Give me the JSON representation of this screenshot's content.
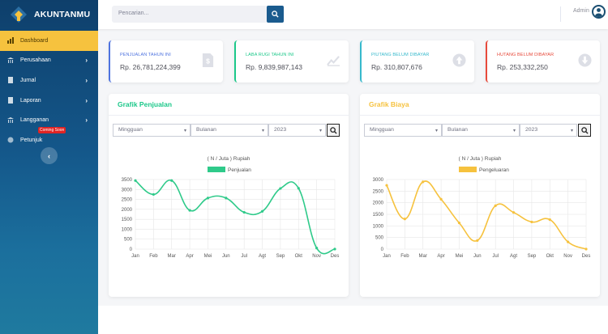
{
  "brand": {
    "name": "AKUNTANMU"
  },
  "sidebar": {
    "items": [
      {
        "label": "Dashboard",
        "icon": "chart-icon",
        "active": true,
        "chevron": ""
      },
      {
        "label": "Perusahaan",
        "icon": "bank-icon",
        "chevron": "›"
      },
      {
        "label": "Jurnal",
        "icon": "book-icon",
        "chevron": "›"
      },
      {
        "label": "Laporan",
        "icon": "report-icon",
        "chevron": "›"
      },
      {
        "label": "Langganan",
        "icon": "bank-icon",
        "chevron": "›"
      },
      {
        "label": "Petunjuk",
        "icon": "help-icon",
        "chevron": "",
        "badge": "Coming Soon"
      }
    ],
    "toggle": "‹"
  },
  "topbar": {
    "search_placeholder": "Pencarian...",
    "user": "Admin"
  },
  "stats": [
    {
      "label": "PENJUALAN TAHUN INI",
      "value": "Rp. 26,781,224,399",
      "color": "#4e73df",
      "icon": "invoice-icon"
    },
    {
      "label": "LABA RUGI TAHUN INI",
      "value": "Rp. 9,839,987,143",
      "color": "#1cc88a",
      "icon": "trend-up-icon"
    },
    {
      "label": "PIUTANG BELUM DIBAYAR",
      "value": "Rp. 310,807,676",
      "color": "#36b9cc",
      "icon": "arrow-up-circle-icon"
    },
    {
      "label": "HUTANG BELUM DIBAYAR",
      "value": "Rp. 253,332,250",
      "color": "#e74a3b",
      "icon": "arrow-down-circle-icon"
    }
  ],
  "filters": {
    "period": "Mingguan",
    "month": "Bulanan",
    "year": "2023"
  },
  "panels": [
    {
      "title": "Grafik Penjualan",
      "title_color": "#1cc88a"
    },
    {
      "title": "Grafik Biaya",
      "title_color": "#f6c23e"
    }
  ],
  "chart_data": [
    {
      "type": "line",
      "title": "( N / Juta ) Rupiah",
      "categories": [
        "Jan",
        "Feb",
        "Mar",
        "Apr",
        "Mei",
        "Jun",
        "Jul",
        "Agt",
        "Sep",
        "Okt",
        "Nov",
        "Des"
      ],
      "series": [
        {
          "name": "Penjualan",
          "color": "#2fca8a",
          "values": [
            3450,
            2750,
            3450,
            1950,
            2570,
            2570,
            1850,
            1900,
            3050,
            3060,
            50,
            0
          ]
        }
      ],
      "ylim": [
        0,
        3500
      ],
      "yticks": [
        0,
        500,
        1000,
        1500,
        2000,
        2500,
        3000,
        3500
      ]
    },
    {
      "type": "line",
      "title": "( N / Juta ) Rupiah",
      "categories": [
        "Jan",
        "Feb",
        "Mar",
        "Apr",
        "Mei",
        "Jun",
        "Jul",
        "Agt",
        "Sep",
        "Okt",
        "Nov",
        "Des"
      ],
      "series": [
        {
          "name": "Pengeluaran",
          "color": "#f6c23e",
          "values": [
            2750,
            1300,
            2900,
            2150,
            1130,
            370,
            1870,
            1580,
            1170,
            1270,
            310,
            0
          ]
        }
      ],
      "ylim": [
        0,
        3000
      ],
      "yticks": [
        0,
        500,
        1000,
        1500,
        2000,
        2500,
        3000
      ]
    }
  ]
}
